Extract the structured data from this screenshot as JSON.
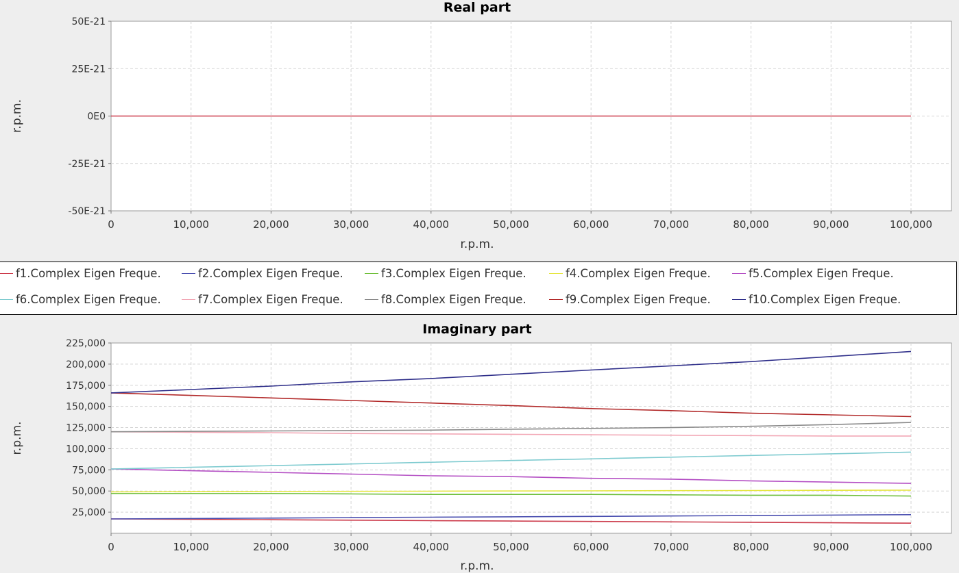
{
  "chart_data": [
    {
      "type": "line",
      "title": "Real part",
      "xlabel": "r.p.m.",
      "ylabel": "r.p.m.",
      "xlim": [
        0,
        100000
      ],
      "ylim": [
        -5e-20,
        5e-20
      ],
      "x_ticks": [
        "0",
        "10,000",
        "20,000",
        "30,000",
        "40,000",
        "50,000",
        "60,000",
        "70,000",
        "80,000",
        "90,000",
        "100,000"
      ],
      "y_ticks": [
        {
          "value": 5e-20,
          "label": "50E-21"
        },
        {
          "value": 2.5e-20,
          "label": "25E-21"
        },
        {
          "value": 0,
          "label": "0E0"
        },
        {
          "value": -2.5e-20,
          "label": "-25E-21"
        },
        {
          "value": -5e-20,
          "label": "-50E-21"
        }
      ],
      "grid": true,
      "x": [
        0,
        100000
      ],
      "series": [
        {
          "name": "f1.Complex Eigen Freque.",
          "color": "#cc3b4b",
          "values": [
            0,
            0
          ]
        }
      ]
    },
    {
      "type": "line",
      "title": "Imaginary part",
      "xlabel": "r.p.m.",
      "ylabel": "r.p.m.",
      "xlim": [
        0,
        100000
      ],
      "ylim": [
        0,
        225000
      ],
      "x_ticks": [
        "0",
        "10,000",
        "20,000",
        "30,000",
        "40,000",
        "50,000",
        "60,000",
        "70,000",
        "80,000",
        "90,000",
        "100,000"
      ],
      "y_ticks": [
        {
          "value": 225000,
          "label": "225,000"
        },
        {
          "value": 200000,
          "label": "200,000"
        },
        {
          "value": 175000,
          "label": "175,000"
        },
        {
          "value": 150000,
          "label": "150,000"
        },
        {
          "value": 125000,
          "label": "125,000"
        },
        {
          "value": 100000,
          "label": "100,000"
        },
        {
          "value": 75000,
          "label": "75,000"
        },
        {
          "value": 50000,
          "label": "50,000"
        },
        {
          "value": 25000,
          "label": "25,000"
        }
      ],
      "grid": true,
      "x": [
        0,
        10000,
        20000,
        30000,
        40000,
        50000,
        60000,
        70000,
        80000,
        90000,
        100000
      ],
      "series": [
        {
          "name": "f1.Complex Eigen Freque.",
          "color": "#cc3b4b",
          "values": [
            17000,
            16500,
            16000,
            15500,
            15000,
            14500,
            14000,
            13500,
            13000,
            12500,
            12000
          ]
        },
        {
          "name": "f2.Complex Eigen Freque.",
          "color": "#4a4fb0",
          "values": [
            17000,
            17500,
            18000,
            18500,
            19000,
            19500,
            20000,
            20500,
            21000,
            21500,
            22000
          ]
        },
        {
          "name": "f3.Complex Eigen Freque.",
          "color": "#6fbf3a",
          "values": [
            47000,
            47000,
            47000,
            46500,
            46000,
            46000,
            46000,
            45500,
            45000,
            45000,
            44000
          ]
        },
        {
          "name": "f4.Complex Eigen Freque.",
          "color": "#e6e640",
          "values": [
            49000,
            49200,
            49400,
            49600,
            49800,
            50000,
            50200,
            50400,
            50600,
            50800,
            51000
          ]
        },
        {
          "name": "f5.Complex Eigen Freque.",
          "color": "#b44fc4",
          "values": [
            76000,
            74000,
            72000,
            70000,
            68000,
            67000,
            65000,
            64000,
            62000,
            60500,
            59000
          ]
        },
        {
          "name": "f6.Complex Eigen Freque.",
          "color": "#7fcbd0",
          "values": [
            76000,
            78000,
            80000,
            82000,
            84000,
            86000,
            88000,
            90000,
            92000,
            94000,
            96000
          ]
        },
        {
          "name": "f7.Complex Eigen Freque.",
          "color": "#f2a7b5",
          "values": [
            120000,
            119500,
            119000,
            118000,
            117500,
            117000,
            116500,
            116000,
            115500,
            115000,
            115000
          ]
        },
        {
          "name": "f8.Complex Eigen Freque.",
          "color": "#8a8a8a",
          "values": [
            120000,
            120500,
            121000,
            121500,
            122000,
            123000,
            124000,
            125000,
            126500,
            128500,
            131000
          ]
        },
        {
          "name": "f9.Complex Eigen Freque.",
          "color": "#b22a2a",
          "values": [
            166000,
            163000,
            160000,
            157000,
            154000,
            151000,
            147500,
            145000,
            142000,
            140000,
            138000
          ]
        },
        {
          "name": "f10.Complex Eigen Freque.",
          "color": "#2f2f8a",
          "values": [
            166000,
            170000,
            174000,
            179000,
            183000,
            188000,
            193000,
            198000,
            203000,
            209000,
            215000
          ]
        }
      ]
    }
  ],
  "legend": {
    "rows": [
      [
        "f1.Complex Eigen Freque.",
        "f2.Complex Eigen Freque.",
        "f3.Complex Eigen Freque.",
        "f4.Complex Eigen Freque.",
        "f5.Complex Eigen Freque."
      ],
      [
        "f6.Complex Eigen Freque.",
        "f7.Complex Eigen Freque.",
        "f8.Complex Eigen Freque.",
        "f9.Complex Eigen Freque.",
        "f10.Complex Eigen Freque."
      ]
    ]
  }
}
